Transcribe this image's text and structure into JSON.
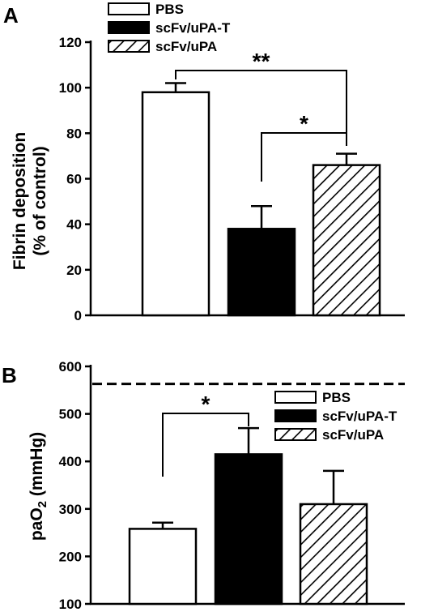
{
  "chart_data": [
    {
      "panel": "A",
      "type": "bar",
      "ylabel_line1": "Fibrin deposition",
      "ylabel_line2": "(% of control)",
      "ylim": [
        0,
        120
      ],
      "yticks": [
        "0",
        "20",
        "40",
        "60",
        "80",
        "100",
        "120"
      ],
      "categories": [
        "PBS",
        "scFv/uPA-T",
        "scFv/uPA"
      ],
      "values": [
        98,
        38,
        66
      ],
      "errors": [
        4,
        10,
        5
      ],
      "legend": [
        "PBS",
        "scFv/uPA-T",
        "scFv/uPA"
      ],
      "legend_position": "top",
      "significance": [
        {
          "label": "**",
          "between": [
            0,
            2
          ]
        },
        {
          "label": "*",
          "between": [
            1,
            2
          ]
        }
      ]
    },
    {
      "panel": "B",
      "type": "bar",
      "ylabel": "paO",
      "ylabel_sub": "2",
      "ylabel_unit": " (mmHg)",
      "ylim": [
        100,
        600
      ],
      "yticks": [
        "100",
        "200",
        "300",
        "400",
        "500",
        "600"
      ],
      "categories": [
        "PBS",
        "scFv/uPA-T",
        "scFv/uPA"
      ],
      "values": [
        258,
        415,
        310
      ],
      "errors": [
        13,
        55,
        70
      ],
      "reference_line": 563,
      "legend": [
        "PBS",
        "scFv/uPA-T",
        "scFv/uPA"
      ],
      "legend_position": "right",
      "significance": [
        {
          "label": "*",
          "between": [
            0,
            1
          ]
        }
      ]
    }
  ]
}
